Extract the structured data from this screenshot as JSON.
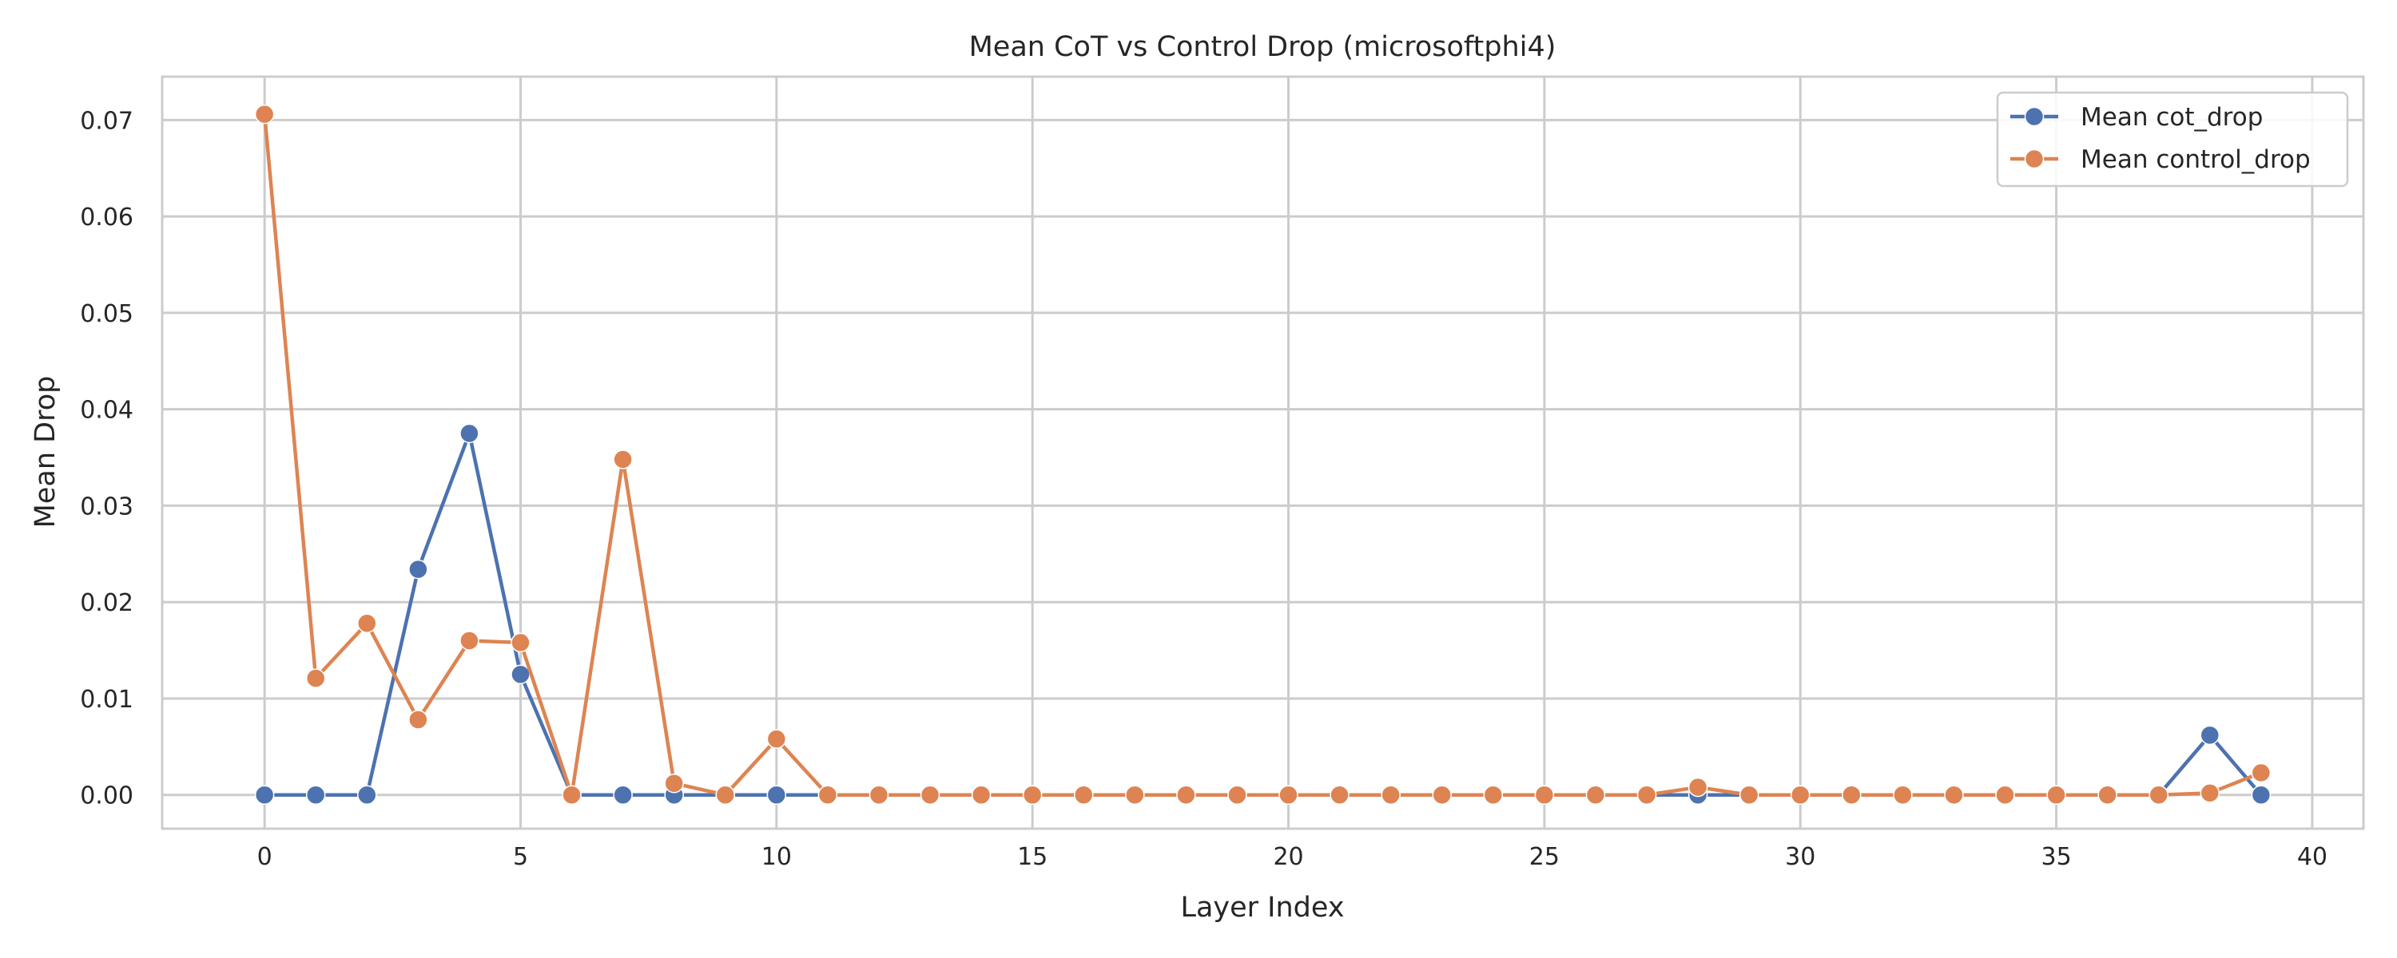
{
  "chart_data": {
    "type": "line",
    "title": "Mean CoT vs Control Drop (microsoftphi4)",
    "xlabel": "Layer Index",
    "ylabel": "Mean Drop",
    "x": [
      0,
      1,
      2,
      3,
      4,
      5,
      6,
      7,
      8,
      9,
      10,
      11,
      12,
      13,
      14,
      15,
      16,
      17,
      18,
      19,
      20,
      21,
      22,
      23,
      24,
      25,
      26,
      27,
      28,
      29,
      30,
      31,
      32,
      33,
      34,
      35,
      36,
      37,
      38,
      39
    ],
    "xlim": [
      -2,
      41
    ],
    "ylim": [
      -0.0035,
      0.0745
    ],
    "xticks": [
      0,
      5,
      10,
      15,
      20,
      25,
      30,
      35,
      40
    ],
    "xtick_labels": [
      "0",
      "5",
      "10",
      "15",
      "20",
      "25",
      "30",
      "35",
      "40"
    ],
    "yticks": [
      0.0,
      0.01,
      0.02,
      0.03,
      0.04,
      0.05,
      0.06,
      0.07
    ],
    "ytick_labels": [
      "0.00",
      "0.01",
      "0.02",
      "0.03",
      "0.04",
      "0.05",
      "0.06",
      "0.07"
    ],
    "grid": true,
    "legend_position": "top-right",
    "series": [
      {
        "name": "Mean cot_drop",
        "color": "#4c72b0",
        "marker": "circle",
        "values": [
          0,
          0,
          0,
          0.0234,
          0.0375,
          0.0125,
          0,
          0,
          0,
          0,
          0,
          0,
          0,
          0,
          0,
          0,
          0,
          0,
          0,
          0,
          0,
          0,
          0,
          0,
          0,
          0,
          0,
          0,
          0,
          0,
          0,
          0,
          0,
          0,
          0,
          0,
          0,
          0,
          0.0062,
          0
        ]
      },
      {
        "name": "Mean control_drop",
        "color": "#dd8452",
        "marker": "circle",
        "values": [
          0.0706,
          0.0121,
          0.0178,
          0.0078,
          0.016,
          0.0158,
          0,
          0.0348,
          0.0012,
          0,
          0.0058,
          0,
          0,
          0,
          0,
          0,
          0,
          0,
          0,
          0,
          0,
          0,
          0,
          0,
          0,
          0,
          0,
          0,
          0.0008,
          0,
          0,
          0,
          0,
          0,
          0,
          0,
          0,
          0,
          0.0002,
          0.0023
        ]
      }
    ]
  }
}
